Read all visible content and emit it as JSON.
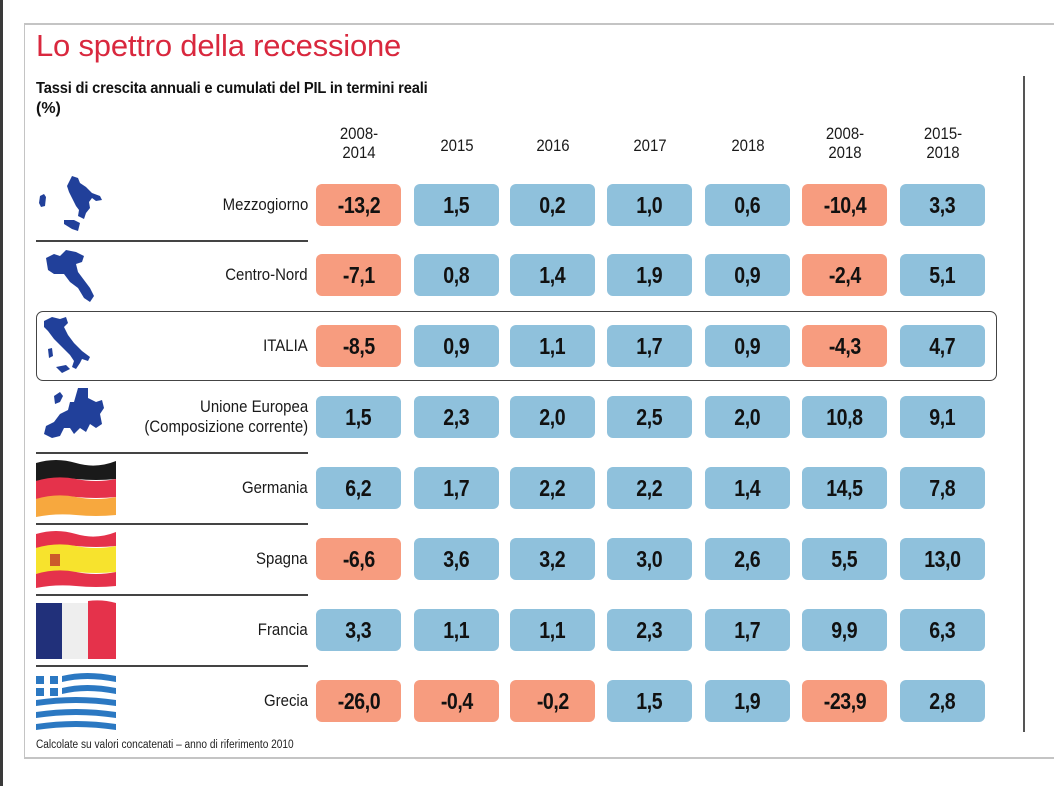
{
  "chart_data": {
    "type": "table",
    "title": "Lo spettro della recessione",
    "subtitle": "Tassi di crescita annuali e cumulati del PIL in termini reali",
    "unit": "(%)",
    "columns": [
      "2008-\n2014",
      "2015",
      "2016",
      "2017",
      "2018",
      "2008-\n2018",
      "2015-\n2018"
    ],
    "columns_plain": [
      "2008-2014",
      "2015",
      "2016",
      "2017",
      "2018",
      "2008-2018",
      "2015-2018"
    ],
    "rows": [
      {
        "label": "Mezzogiorno",
        "icon": "south-italy-map-icon",
        "values": [
          -13.2,
          1.5,
          0.2,
          1.0,
          0.6,
          -10.4,
          3.3
        ],
        "display": [
          "-13,2",
          "1,5",
          "0,2",
          "1,0",
          "0,6",
          "-10,4",
          "3,3"
        ]
      },
      {
        "label": "Centro-Nord",
        "icon": "north-italy-map-icon",
        "values": [
          -7.1,
          0.8,
          1.4,
          1.9,
          0.9,
          -2.4,
          5.1
        ],
        "display": [
          "-7,1",
          "0,8",
          "1,4",
          "1,9",
          "0,9",
          "-2,4",
          "5,1"
        ]
      },
      {
        "label": "ITALIA",
        "icon": "italy-map-icon",
        "highlighted": true,
        "values": [
          -8.5,
          0.9,
          1.1,
          1.7,
          0.9,
          -4.3,
          4.7
        ],
        "display": [
          "-8,5",
          "0,9",
          "1,1",
          "1,7",
          "0,9",
          "-4,3",
          "4,7"
        ]
      },
      {
        "label": "Unione Europea",
        "label2": "(Composizione corrente)",
        "icon": "europe-map-icon",
        "values": [
          1.5,
          2.3,
          2.0,
          2.5,
          2.0,
          10.8,
          9.1
        ],
        "display": [
          "1,5",
          "2,3",
          "2,0",
          "2,5",
          "2,0",
          "10,8",
          "9,1"
        ]
      },
      {
        "label": "Germania",
        "icon": "germany-flag-icon",
        "values": [
          6.2,
          1.7,
          2.2,
          2.2,
          1.4,
          14.5,
          7.8
        ],
        "display": [
          "6,2",
          "1,7",
          "2,2",
          "2,2",
          "1,4",
          "14,5",
          "7,8"
        ]
      },
      {
        "label": "Spagna",
        "icon": "spain-flag-icon",
        "values": [
          -6.6,
          3.6,
          3.2,
          3.0,
          2.6,
          5.5,
          13.0
        ],
        "display": [
          "-6,6",
          "3,6",
          "3,2",
          "3,0",
          "2,6",
          "5,5",
          "13,0"
        ]
      },
      {
        "label": "Francia",
        "icon": "france-flag-icon",
        "values": [
          3.3,
          1.1,
          1.1,
          2.3,
          1.7,
          9.9,
          6.3
        ],
        "display": [
          "3,3",
          "1,1",
          "1,1",
          "2,3",
          "1,7",
          "9,9",
          "6,3"
        ]
      },
      {
        "label": "Grecia",
        "icon": "greece-flag-icon",
        "values": [
          -26.0,
          -0.4,
          -0.2,
          1.5,
          1.9,
          -23.9,
          2.8
        ],
        "display": [
          "-26,0",
          "-0,4",
          "-0,2",
          "1,5",
          "1,9",
          "-23,9",
          "2,8"
        ]
      }
    ],
    "colors": {
      "positive": "#8fc1dc",
      "negative": "#f79c7f",
      "title": "#d9283e",
      "map": "#21409a"
    },
    "footnote": "Calcolate su valori concatenati – anno di riferimento 2010"
  }
}
